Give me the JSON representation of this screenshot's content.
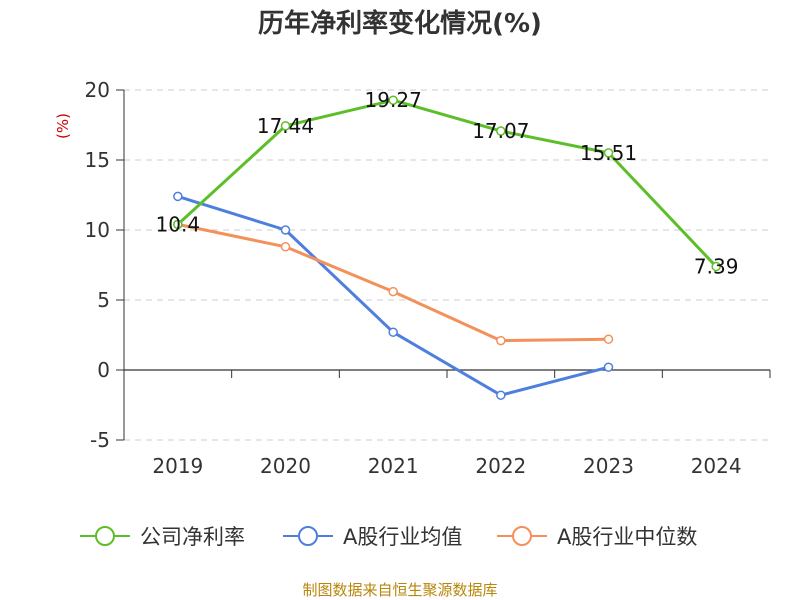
{
  "chart_data": {
    "type": "line",
    "title": "历年净利率变化情况(%)",
    "ylabel": "(%)",
    "xlabel": "",
    "categories": [
      "2019",
      "2020",
      "2021",
      "2022",
      "2023",
      "2024"
    ],
    "ylim": [
      -5,
      20
    ],
    "yticks": [
      -5,
      0,
      5,
      10,
      15,
      20
    ],
    "grid": true,
    "legend_position": "bottom",
    "series": [
      {
        "name": "公司净利率",
        "color": "#5cbf2a",
        "values": [
          10.4,
          17.44,
          19.27,
          17.07,
          15.51,
          7.39
        ],
        "labels": [
          "10.4",
          "17.44",
          "19.27",
          "17.07",
          "15.51",
          "7.39"
        ]
      },
      {
        "name": "A股行业均值",
        "color": "#4e7fde",
        "values": [
          12.4,
          10.0,
          2.7,
          -1.8,
          0.2,
          null
        ]
      },
      {
        "name": "A股行业中位数",
        "color": "#f4905a",
        "values": [
          10.4,
          8.8,
          5.6,
          2.1,
          2.2,
          null
        ]
      }
    ]
  },
  "footer": {
    "source": "制图数据来自恒生聚源数据库"
  }
}
